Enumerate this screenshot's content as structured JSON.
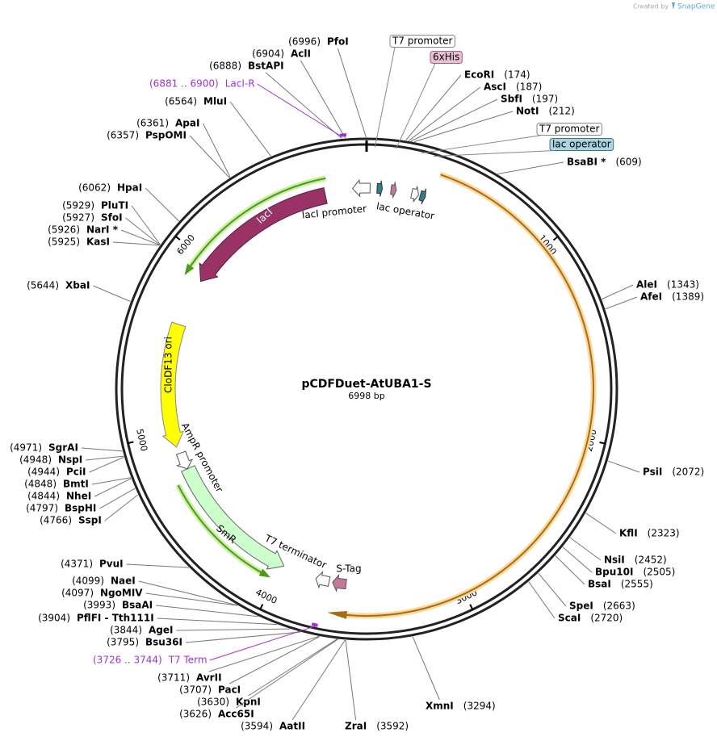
{
  "header": {
    "created_by": "Created by",
    "brand": "SnapGene"
  },
  "plasmid": {
    "name": "pCDFDuet-AtUBA1-S",
    "length": "6998 bp"
  },
  "ticks": [
    1000,
    2000,
    3000,
    4000,
    5000,
    6000
  ],
  "sites": [
    {
      "name": "PfoI",
      "position": "(6996)"
    },
    {
      "name": "AclI",
      "position": "(6904)"
    },
    {
      "name": "BstAPI",
      "position": "(6888)"
    },
    {
      "name": "MluI",
      "position": "(6564)"
    },
    {
      "name": "ApaI",
      "position": "(6361)"
    },
    {
      "name": "PspOMI",
      "position": "(6357)"
    },
    {
      "name": "HpaI",
      "position": "(6062)"
    },
    {
      "name": "PluTI",
      "position": "(5929)"
    },
    {
      "name": "SfoI",
      "position": "(5927)"
    },
    {
      "name": "NarI *",
      "position": "(5926)"
    },
    {
      "name": "KasI",
      "position": "(5925)"
    },
    {
      "name": "XbaI",
      "position": "(5644)"
    },
    {
      "name": "SgrAI",
      "position": "(4971)"
    },
    {
      "name": "NspI",
      "position": "(4948)"
    },
    {
      "name": "PciI",
      "position": "(4944)"
    },
    {
      "name": "BmtI",
      "position": "(4848)"
    },
    {
      "name": "NheI",
      "position": "(4844)"
    },
    {
      "name": "BspHI",
      "position": "(4797)"
    },
    {
      "name": "SspI",
      "position": "(4766)"
    },
    {
      "name": "PvuI",
      "position": "(4371)"
    },
    {
      "name": "NaeI",
      "position": "(4099)"
    },
    {
      "name": "NgoMIV",
      "position": "(4097)"
    },
    {
      "name": "BsaAI",
      "position": "(3993)"
    },
    {
      "name": "PflFI - Tth111I",
      "position": "(3904)"
    },
    {
      "name": "AgeI",
      "position": "(3844)"
    },
    {
      "name": "Bsu36I",
      "position": "(3795)"
    },
    {
      "name": "AvrII",
      "position": "(3711)"
    },
    {
      "name": "PacI",
      "position": "(3707)"
    },
    {
      "name": "KpnI",
      "position": "(3630)"
    },
    {
      "name": "Acc65I",
      "position": "(3626)"
    },
    {
      "name": "AatII",
      "position": "(3594)"
    },
    {
      "name": "EcoRI",
      "position": "(174)"
    },
    {
      "name": "AscI",
      "position": "(187)"
    },
    {
      "name": "SbfI",
      "position": "(197)"
    },
    {
      "name": "NotI",
      "position": "(212)"
    },
    {
      "name": "BsaBI *",
      "position": "(609)"
    },
    {
      "name": "AleI",
      "position": "(1343)"
    },
    {
      "name": "AfeI",
      "position": "(1389)"
    },
    {
      "name": "PsiI",
      "position": "(2072)"
    },
    {
      "name": "KflI",
      "position": "(2323)"
    },
    {
      "name": "NsiI",
      "position": "(2452)"
    },
    {
      "name": "Bpu10I",
      "position": "(2505)"
    },
    {
      "name": "BsaI",
      "position": "(2555)"
    },
    {
      "name": "SpeI",
      "position": "(2663)"
    },
    {
      "name": "ScaI",
      "position": "(2720)"
    },
    {
      "name": "XmnI",
      "position": "(3294)"
    },
    {
      "name": "ZraI",
      "position": "(3592)"
    }
  ],
  "features": [
    "lacI",
    "lacI promoter",
    "lac operator",
    "CloDF13 ori",
    "AmpR promoter",
    "SmR",
    "T7 terminator",
    "S-Tag"
  ],
  "boxed_features": [
    "T7 promoter",
    "6xHis",
    "T7 promoter",
    "lac operator"
  ],
  "primers": [
    {
      "range": "(6881 .. 6900)",
      "name": "LacI-R"
    },
    {
      "range": "(3726 .. 3744)",
      "name": "T7 Term"
    }
  ]
}
